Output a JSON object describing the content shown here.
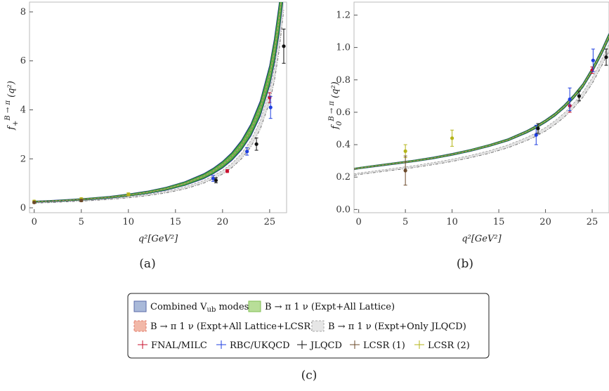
{
  "colors": {
    "combined": "#1e2f8f",
    "combined_fill": "#a9b9d9",
    "lattice": "#2e8b2e",
    "lattice_fill": "#9fd17f",
    "lcsr_fit": "#e07a6a",
    "lcsr_fill": "#f2b8a8",
    "jlqcd_fit": "#777777",
    "jlqcd_fill": "#d9d9d9",
    "fnal": "#c8102e",
    "rbc": "#1f3fe0",
    "jlqcd": "#111111",
    "lcsr1": "#6b4a2a",
    "lcsr2": "#b5b51a"
  },
  "chart_data": [
    {
      "type": "line",
      "caption": "(a)",
      "ylabel": "f₊^{B→π} (q²)",
      "ylabel_main": "f",
      "ylabel_sub": "+",
      "ylabel_sup": "B → π",
      "ylabel_arg": "(q²)",
      "xlabel": "q²[GeV²]",
      "xlim": [
        -0.5,
        26.8
      ],
      "ylim": [
        -0.2,
        8.4
      ],
      "xticks": [
        "0",
        "5",
        "10",
        "15",
        "20",
        "25"
      ],
      "xtick_values": [
        0,
        5,
        10,
        15,
        20,
        25
      ],
      "yticks": [
        "0",
        "2",
        "4",
        "6",
        "8"
      ],
      "ytick_values": [
        0,
        2,
        4,
        6,
        8
      ],
      "band_green": [
        [
          0,
          0.25
        ],
        [
          2,
          0.28
        ],
        [
          4,
          0.32
        ],
        [
          6,
          0.37
        ],
        [
          8,
          0.43
        ],
        [
          10,
          0.52
        ],
        [
          12,
          0.63
        ],
        [
          14,
          0.78
        ],
        [
          16,
          0.99
        ],
        [
          18,
          1.29
        ],
        [
          19,
          1.5
        ],
        [
          20,
          1.76
        ],
        [
          21,
          2.1
        ],
        [
          22,
          2.55
        ],
        [
          23,
          3.17
        ],
        [
          24,
          4.05
        ],
        [
          25,
          5.4
        ],
        [
          25.5,
          6.4
        ],
        [
          26,
          7.7
        ],
        [
          26.4,
          9.1
        ]
      ],
      "band_width": 0.06,
      "band_gray": [
        [
          0,
          0.2
        ],
        [
          2,
          0.23
        ],
        [
          4,
          0.27
        ],
        [
          6,
          0.31
        ],
        [
          8,
          0.36
        ],
        [
          10,
          0.43
        ],
        [
          12,
          0.52
        ],
        [
          14,
          0.64
        ],
        [
          16,
          0.81
        ],
        [
          18,
          1.06
        ],
        [
          19,
          1.24
        ],
        [
          20,
          1.45
        ],
        [
          21,
          1.73
        ],
        [
          22,
          2.1
        ],
        [
          23,
          2.62
        ],
        [
          24,
          3.38
        ],
        [
          25,
          4.55
        ],
        [
          25.5,
          5.45
        ],
        [
          26,
          6.75
        ],
        [
          26.5,
          8.5
        ]
      ],
      "gray_width": 0.05,
      "points": [
        {
          "set": "lcsr2",
          "x": 0,
          "y": 0.26,
          "err": 0.05
        },
        {
          "set": "lcsr1",
          "x": 0,
          "y": 0.22,
          "err": 0.04
        },
        {
          "set": "lcsr2",
          "x": 5,
          "y": 0.36,
          "err": 0.05
        },
        {
          "set": "lcsr1",
          "x": 5,
          "y": 0.3,
          "err": 0.05
        },
        {
          "set": "lcsr2",
          "x": 10,
          "y": 0.55,
          "err": 0.06
        },
        {
          "set": "rbc",
          "x": 19.0,
          "y": 1.2,
          "err": 0.12
        },
        {
          "set": "jlqcd",
          "x": 19.3,
          "y": 1.12,
          "err": 0.1
        },
        {
          "set": "fnal",
          "x": 20.5,
          "y": 1.5,
          "err": 0.06
        },
        {
          "set": "rbc",
          "x": 22.6,
          "y": 2.3,
          "err": 0.15
        },
        {
          "set": "jlqcd",
          "x": 23.6,
          "y": 2.6,
          "err": 0.25
        },
        {
          "set": "fnal",
          "x": 25.0,
          "y": 4.5,
          "err": 0.2
        },
        {
          "set": "rbc",
          "x": 25.1,
          "y": 4.1,
          "err": 0.45
        },
        {
          "set": "jlqcd",
          "x": 26.5,
          "y": 6.6,
          "err": 0.7
        }
      ]
    },
    {
      "type": "line",
      "caption": "(b)",
      "ylabel": "f₀^{B→π} (q²)",
      "ylabel_main": "f",
      "ylabel_sub": "0",
      "ylabel_sup": "B → π",
      "ylabel_arg": "(q²)",
      "xlabel": "q²[GeV²]",
      "xlim": [
        -0.5,
        26.8
      ],
      "ylim": [
        -0.02,
        1.28
      ],
      "xticks": [
        "0",
        "5",
        "10",
        "15",
        "20",
        "25"
      ],
      "xtick_values": [
        0,
        5,
        10,
        15,
        20,
        25
      ],
      "yticks": [
        "0.0",
        "0.2",
        "0.4",
        "0.6",
        "0.8",
        "1.0",
        "1.2"
      ],
      "ytick_values": [
        0.0,
        0.2,
        0.4,
        0.6,
        0.8,
        1.0,
        1.2
      ],
      "band_green": [
        [
          -0.5,
          0.25
        ],
        [
          0,
          0.255
        ],
        [
          2,
          0.27
        ],
        [
          4,
          0.285
        ],
        [
          6,
          0.3
        ],
        [
          8,
          0.318
        ],
        [
          10,
          0.34
        ],
        [
          12,
          0.365
        ],
        [
          14,
          0.395
        ],
        [
          16,
          0.43
        ],
        [
          18,
          0.48
        ],
        [
          19,
          0.51
        ],
        [
          20,
          0.545
        ],
        [
          21,
          0.585
        ],
        [
          22,
          0.635
        ],
        [
          23,
          0.695
        ],
        [
          24,
          0.765
        ],
        [
          25,
          0.86
        ],
        [
          26,
          0.97
        ],
        [
          26.8,
          1.07
        ]
      ],
      "band_width": 0.012,
      "band_gray": [
        [
          -0.5,
          0.215
        ],
        [
          0,
          0.22
        ],
        [
          2,
          0.235
        ],
        [
          4,
          0.25
        ],
        [
          6,
          0.265
        ],
        [
          8,
          0.283
        ],
        [
          10,
          0.303
        ],
        [
          12,
          0.327
        ],
        [
          14,
          0.355
        ],
        [
          16,
          0.39
        ],
        [
          18,
          0.435
        ],
        [
          19,
          0.463
        ],
        [
          20,
          0.495
        ],
        [
          21,
          0.535
        ],
        [
          22,
          0.582
        ],
        [
          23,
          0.64
        ],
        [
          24,
          0.708
        ],
        [
          25,
          0.795
        ],
        [
          26,
          0.905
        ],
        [
          26.8,
          1.0
        ]
      ],
      "gray_width": 0.022,
      "points": [
        {
          "set": "lcsr2",
          "x": 5,
          "y": 0.36,
          "err": 0.04
        },
        {
          "set": "lcsr1",
          "x": 5,
          "y": 0.24,
          "err": 0.09
        },
        {
          "set": "lcsr2",
          "x": 10,
          "y": 0.44,
          "err": 0.05
        },
        {
          "set": "rbc",
          "x": 19.0,
          "y": 0.46,
          "err": 0.06
        },
        {
          "set": "jlqcd",
          "x": 19.2,
          "y": 0.5,
          "err": 0.03
        },
        {
          "set": "fnal",
          "x": 22.6,
          "y": 0.64,
          "err": 0.04
        },
        {
          "set": "rbc",
          "x": 22.6,
          "y": 0.68,
          "err": 0.07
        },
        {
          "set": "jlqcd",
          "x": 23.6,
          "y": 0.7,
          "err": 0.03
        },
        {
          "set": "fnal",
          "x": 25.0,
          "y": 0.86,
          "err": 0.02
        },
        {
          "set": "rbc",
          "x": 25.1,
          "y": 0.92,
          "err": 0.07
        },
        {
          "set": "jlqcd",
          "x": 26.5,
          "y": 0.94,
          "err": 0.05
        }
      ]
    }
  ],
  "legend": {
    "caption": "(c)",
    "row1": [
      {
        "label": "Combined V",
        "sub": "ub",
        "tail": " modes",
        "kind": "combined"
      },
      {
        "label": "B → π 1 ν (Expt+All Lattice)",
        "kind": "lattice"
      }
    ],
    "row2": [
      {
        "label": "B → π 1 ν (Expt+All Lattice+LCSR)",
        "kind": "lcsr_fit"
      },
      {
        "label": "B → π 1 ν (Expt+Only JLQCD)",
        "kind": "jlqcd_fit"
      }
    ],
    "row3": [
      {
        "label": "FNAL/MILC",
        "kind": "fnal"
      },
      {
        "label": "RBC/UKQCD",
        "kind": "rbc"
      },
      {
        "label": "JLQCD",
        "kind": "jlqcd"
      },
      {
        "label": "LCSR (1)",
        "kind": "lcsr1"
      },
      {
        "label": "LCSR (2)",
        "kind": "lcsr2"
      }
    ]
  }
}
